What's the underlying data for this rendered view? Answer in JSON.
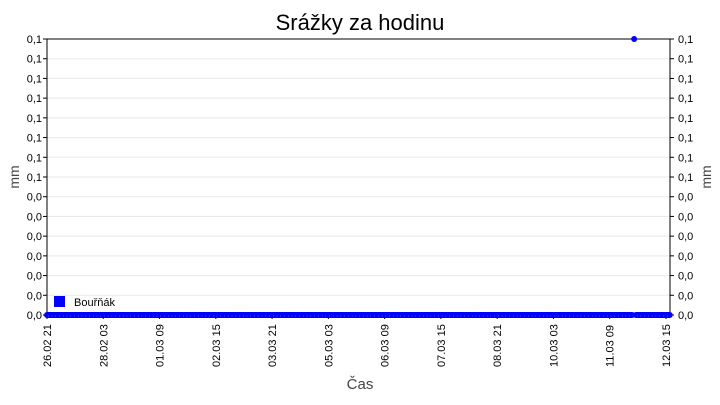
{
  "chart_data": {
    "type": "line",
    "title": "Srážky za hodinu",
    "xlabel": "Čas",
    "ylabel": "mm",
    "ylabel_right": "mm",
    "ylim": [
      0,
      0.1
    ],
    "y_tick_labels": [
      "0,0",
      "0,0",
      "0,0",
      "0,0",
      "0,0",
      "0,0",
      "0,0",
      "0,1",
      "0,1",
      "0,1",
      "0,1",
      "0,1",
      "0,1",
      "0,1",
      "0,1"
    ],
    "x_start": "26.02 21:00",
    "x_end": "12.03 17:00",
    "x_interval": "1 hour",
    "x_tick_labels": [
      "26.02 21",
      "28.02 03",
      "01.03 09",
      "02.03 15",
      "03.03 21",
      "05.03 03",
      "06.03 09",
      "07.03 15",
      "08.03 21",
      "10.03 03",
      "11.03 09",
      "12.03 15"
    ],
    "grid": true,
    "legend_placement": "bottom-left",
    "series": [
      {
        "name": "Bouřňák",
        "color": "#0000ff",
        "values": [
          0,
          0,
          0,
          0,
          0,
          0,
          0,
          0,
          0,
          0,
          0,
          0,
          0,
          0,
          0,
          0,
          0,
          0,
          0,
          0,
          0,
          0,
          0,
          0,
          0,
          0,
          0,
          0,
          0,
          0,
          0,
          0,
          0,
          0,
          0,
          0,
          0,
          0,
          0,
          0,
          0,
          0,
          0,
          0,
          0,
          0,
          0,
          0,
          0,
          0,
          0,
          0,
          0,
          0,
          0,
          0,
          0,
          0,
          0,
          0,
          0,
          0,
          0,
          0,
          0,
          0,
          0,
          0,
          0,
          0,
          0,
          0,
          0,
          0,
          0,
          0,
          0,
          0,
          0,
          0,
          0,
          0,
          0,
          0,
          0,
          0,
          0,
          0,
          0,
          0,
          0,
          0,
          0,
          0,
          0,
          0,
          0,
          0,
          0,
          0,
          0,
          0,
          0,
          0,
          0,
          0,
          0,
          0,
          0,
          0,
          0,
          0,
          0,
          0,
          0,
          0,
          0,
          0,
          0,
          0,
          0,
          0,
          0,
          0,
          0,
          0,
          0,
          0,
          0,
          0,
          0,
          0,
          0,
          0,
          0,
          0,
          0,
          0,
          0,
          0,
          0,
          0,
          0,
          0,
          0,
          0,
          0,
          0,
          0,
          0,
          0,
          0,
          0,
          0,
          0,
          0,
          0,
          0,
          0,
          0,
          0,
          0,
          0,
          0,
          0,
          0,
          0,
          0,
          0,
          0,
          0,
          0,
          0,
          0,
          0,
          0,
          0,
          0,
          0,
          0,
          0,
          0,
          0,
          0,
          0,
          0,
          0,
          0,
          0,
          0,
          0,
          0,
          0,
          0,
          0,
          0,
          0,
          0,
          0,
          0,
          0,
          0,
          0,
          0,
          0,
          0,
          0,
          0,
          0,
          0,
          0,
          0,
          0,
          0,
          0,
          0,
          0,
          0,
          0,
          0,
          0,
          0,
          0,
          0,
          0,
          0,
          0,
          0,
          0,
          0,
          0,
          0,
          0,
          0,
          0,
          0,
          0,
          0,
          0,
          0,
          0,
          0,
          0,
          0,
          0,
          0,
          0,
          0,
          0,
          0,
          0,
          0,
          0,
          0,
          0,
          0,
          0,
          0,
          0,
          0,
          0,
          0,
          0,
          0,
          0,
          0,
          0,
          0,
          0,
          0,
          0,
          0,
          0,
          0,
          0,
          0,
          0,
          0,
          0,
          0,
          0,
          0,
          0,
          0,
          0,
          0,
          0,
          0,
          0,
          0,
          0,
          0,
          0,
          0,
          0,
          0,
          0,
          0,
          0,
          0,
          0,
          0,
          0,
          0,
          0,
          0,
          0,
          0,
          0,
          0,
          0,
          0,
          0,
          0.1,
          0,
          0,
          0,
          0,
          0,
          0,
          0,
          0,
          0,
          0,
          0,
          0,
          0,
          0,
          0,
          0,
          0,
          0,
          0
        ]
      }
    ]
  }
}
